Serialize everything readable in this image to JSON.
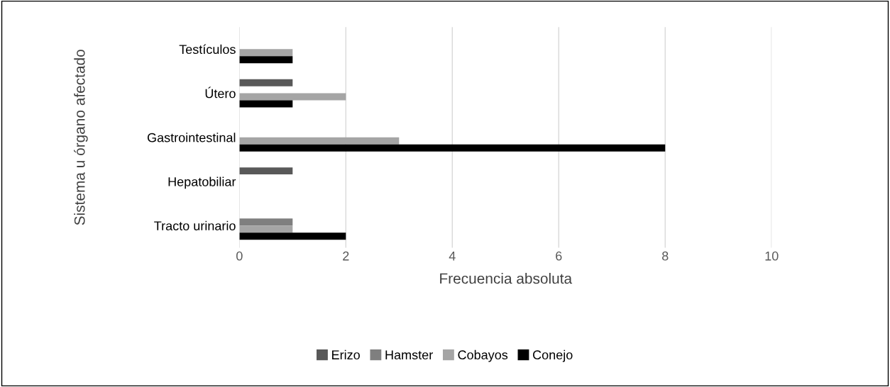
{
  "chart_data": {
    "type": "bar",
    "orientation": "horizontal",
    "xlabel": "Frecuencia absoluta",
    "ylabel": "Sistema u órgano afectado",
    "categories": [
      "Testículos",
      "Útero",
      "Gastrointestinal",
      "Hepatobiliar",
      "Tracto urinario"
    ],
    "series": [
      {
        "name": "Erizo",
        "color": "#595959",
        "values": [
          null,
          1,
          null,
          1,
          null
        ]
      },
      {
        "name": "Hamster",
        "color": "#7f7f7f",
        "values": [
          null,
          null,
          null,
          null,
          1
        ]
      },
      {
        "name": "Cobayos",
        "color": "#a5a5a5",
        "values": [
          1,
          2,
          3,
          null,
          1
        ]
      },
      {
        "name": "Conejo",
        "color": "#000000",
        "values": [
          1,
          1,
          8,
          null,
          2
        ]
      }
    ],
    "xlim": [
      0,
      10
    ],
    "xticks": [
      0,
      2,
      4,
      6,
      8,
      10
    ],
    "grid": "x",
    "legend": "bottom"
  }
}
